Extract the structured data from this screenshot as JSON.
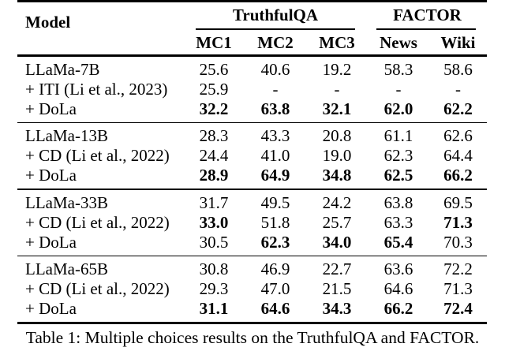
{
  "colors": {
    "background": "#ffffff",
    "text": "#000000",
    "rules": "#000000"
  },
  "table": {
    "header": {
      "model_label": "Model",
      "col_groups": [
        {
          "label": "TruthfulQA",
          "cols": [
            "MC1",
            "MC2",
            "MC3"
          ]
        },
        {
          "label": "FACTOR",
          "cols": [
            "News",
            "Wiki"
          ]
        }
      ]
    },
    "groups": [
      {
        "rows": [
          {
            "model": "LLaMa-7B",
            "values": [
              "25.6",
              "40.6",
              "19.2",
              "58.3",
              "58.6"
            ],
            "bold": [
              false,
              false,
              false,
              false,
              false
            ]
          },
          {
            "model": "+ ITI (Li et al., 2023)",
            "values": [
              "25.9",
              "-",
              "-",
              "-",
              "-"
            ],
            "bold": [
              false,
              false,
              false,
              false,
              false
            ]
          },
          {
            "model": "+ DoLa",
            "values": [
              "32.2",
              "63.8",
              "32.1",
              "62.0",
              "62.2"
            ],
            "bold": [
              true,
              true,
              true,
              true,
              true
            ]
          }
        ]
      },
      {
        "rows": [
          {
            "model": "LLaMa-13B",
            "values": [
              "28.3",
              "43.3",
              "20.8",
              "61.1",
              "62.6"
            ],
            "bold": [
              false,
              false,
              false,
              false,
              false
            ]
          },
          {
            "model": "+ CD (Li et al., 2022)",
            "values": [
              "24.4",
              "41.0",
              "19.0",
              "62.3",
              "64.4"
            ],
            "bold": [
              false,
              false,
              false,
              false,
              false
            ]
          },
          {
            "model": "+ DoLa",
            "values": [
              "28.9",
              "64.9",
              "34.8",
              "62.5",
              "66.2"
            ],
            "bold": [
              true,
              true,
              true,
              true,
              true
            ]
          }
        ]
      },
      {
        "rows": [
          {
            "model": "LLaMa-33B",
            "values": [
              "31.7",
              "49.5",
              "24.2",
              "63.8",
              "69.5"
            ],
            "bold": [
              false,
              false,
              false,
              false,
              false
            ]
          },
          {
            "model": "+ CD (Li et al., 2022)",
            "values": [
              "33.0",
              "51.8",
              "25.7",
              "63.3",
              "71.3"
            ],
            "bold": [
              true,
              false,
              false,
              false,
              true
            ]
          },
          {
            "model": "+ DoLa",
            "values": [
              "30.5",
              "62.3",
              "34.0",
              "65.4",
              "70.3"
            ],
            "bold": [
              false,
              true,
              true,
              true,
              false
            ]
          }
        ]
      },
      {
        "rows": [
          {
            "model": "LLaMa-65B",
            "values": [
              "30.8",
              "46.9",
              "22.7",
              "63.6",
              "72.2"
            ],
            "bold": [
              false,
              false,
              false,
              false,
              false
            ]
          },
          {
            "model": "+ CD (Li et al., 2022)",
            "values": [
              "29.3",
              "47.0",
              "21.5",
              "64.6",
              "71.3"
            ],
            "bold": [
              false,
              false,
              false,
              false,
              false
            ]
          },
          {
            "model": "+ DoLa",
            "values": [
              "31.1",
              "64.6",
              "34.3",
              "66.2",
              "72.4"
            ],
            "bold": [
              true,
              true,
              true,
              true,
              true
            ]
          }
        ]
      }
    ]
  },
  "caption": "Table 1: Multiple choices results on the TruthfulQA and FACTOR."
}
